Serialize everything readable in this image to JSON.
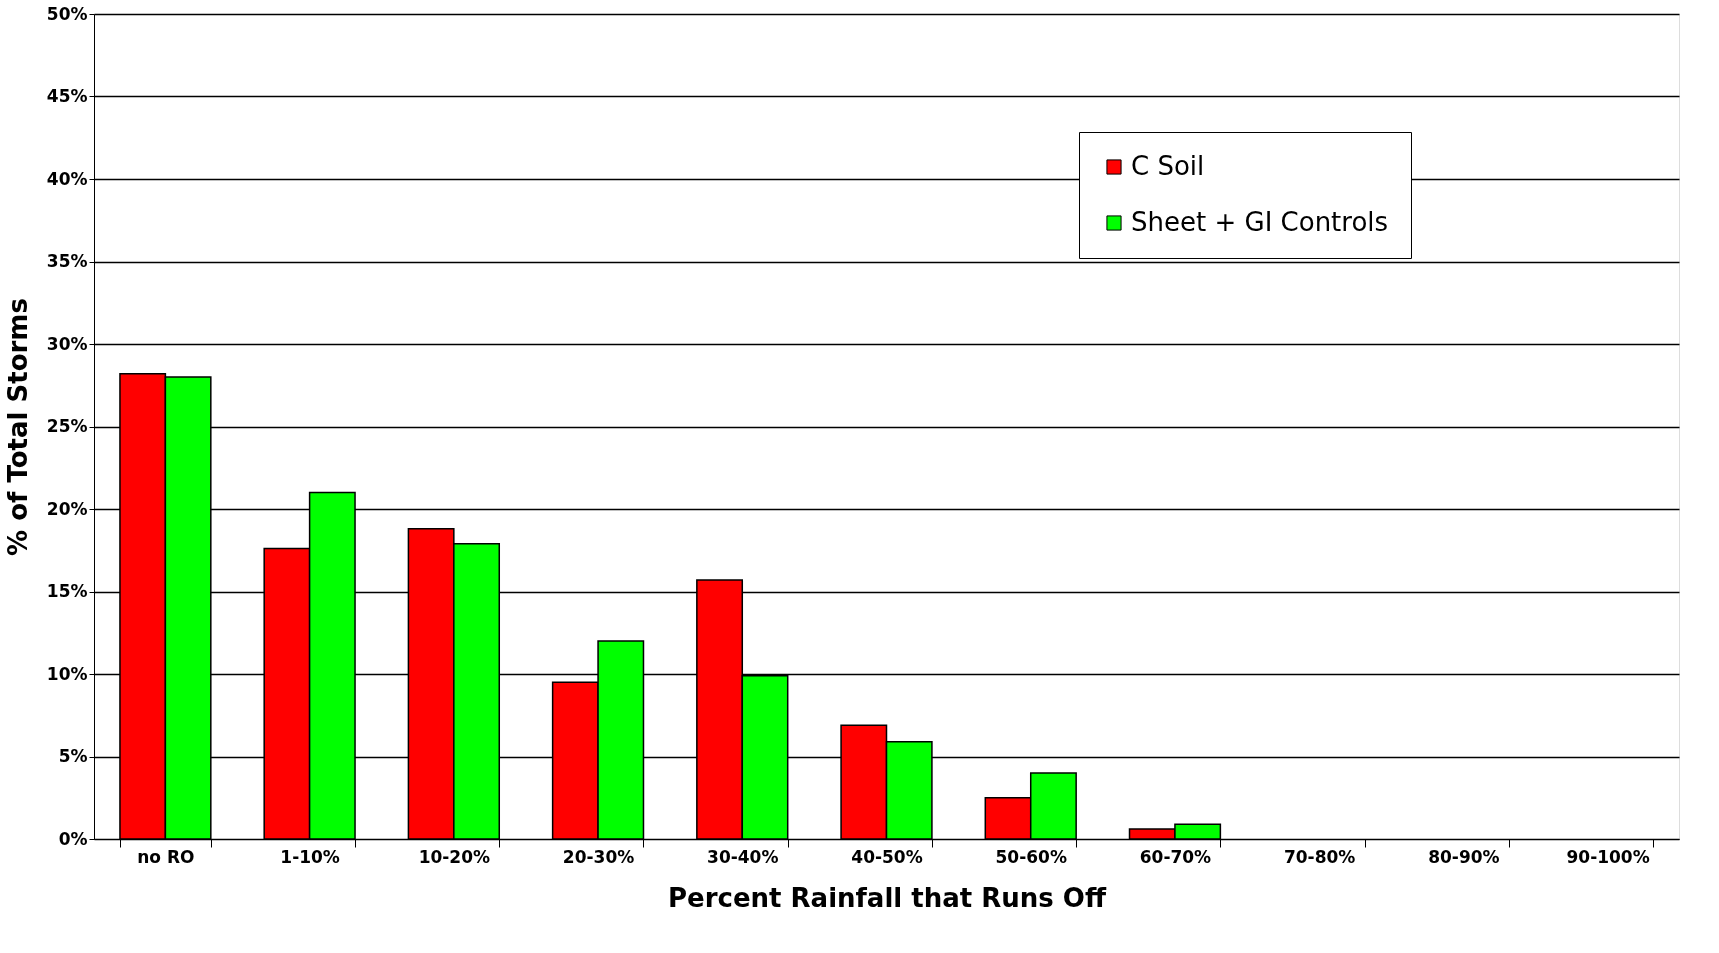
{
  "chart_data": {
    "type": "bar",
    "xlabel": "Percent Rainfall that Runs Off",
    "ylabel": "%  of Total Storms",
    "categories": [
      "no RO",
      "1-10%",
      "10-20%",
      "20-30%",
      "30-40%",
      "40-50%",
      "50-60%",
      "60-70%",
      "70-80%",
      "80-90%",
      "90-100%"
    ],
    "series": [
      {
        "name": "C Soil",
        "color": "#ff0000",
        "values": [
          28.2,
          17.6,
          18.8,
          9.5,
          15.7,
          6.9,
          2.5,
          0.6,
          0,
          0,
          0
        ]
      },
      {
        "name": "Sheet + GI Controls",
        "color": "#00ff00",
        "values": [
          28.0,
          21.0,
          17.9,
          12.0,
          9.9,
          5.9,
          4.0,
          0.9,
          0,
          0,
          0
        ]
      }
    ],
    "ylim": [
      0,
      50
    ],
    "yticks": [
      {
        "value": 0,
        "label": "0%"
      },
      {
        "value": 5,
        "label": "5%"
      },
      {
        "value": 10,
        "label": "10%"
      },
      {
        "value": 15,
        "label": "15%"
      },
      {
        "value": 20,
        "label": "20%"
      },
      {
        "value": 25,
        "label": "25%"
      },
      {
        "value": 30,
        "label": "30%"
      },
      {
        "value": 35,
        "label": "35%"
      },
      {
        "value": 40,
        "label": "40%"
      },
      {
        "value": 45,
        "label": "45%"
      },
      {
        "value": 50,
        "label": "50%"
      }
    ],
    "grid": "y",
    "legend": "top right"
  }
}
